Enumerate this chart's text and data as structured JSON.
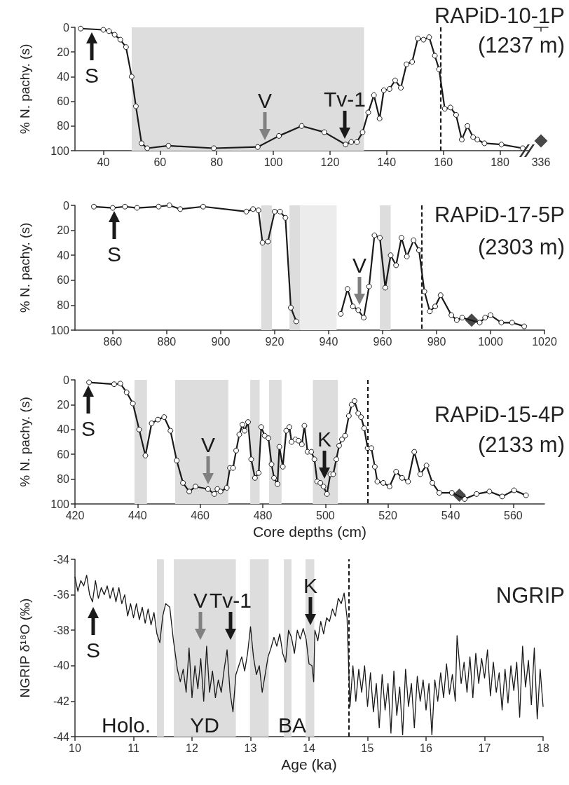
{
  "chart_data": [
    {
      "type": "line",
      "title": "RAPiD-10-1P",
      "subtitle": "(1237 m)",
      "ylabel": "% N. pachy. (s)",
      "marker": "circle",
      "series": [
        {
          "color": "#1a1a1a",
          "x": [
            32,
            40,
            42,
            44,
            46,
            48,
            50,
            51.5,
            53.5,
            55.5,
            63,
            79,
            94.5,
            102,
            110,
            118,
            125.5,
            127.5,
            129.5,
            131.5,
            133.5,
            135.5,
            137.5,
            139,
            141,
            143,
            145,
            147,
            149,
            151,
            153,
            155,
            157,
            158.5,
            160.5,
            162.5,
            164.5,
            166.5,
            168.5,
            170.5,
            172,
            174.5,
            180.5,
            188
          ],
          "values": [
            1,
            2,
            3,
            6,
            10,
            16,
            40,
            64,
            94,
            98,
            96,
            98,
            97,
            88,
            80,
            85,
            95,
            93,
            93,
            85,
            69,
            55,
            74,
            51,
            50,
            43,
            49,
            30,
            28,
            9,
            10,
            8,
            23,
            34,
            66,
            65,
            71,
            91,
            80,
            89,
            91,
            94,
            95,
            98
          ]
        }
      ],
      "xlim": [
        30,
        190
      ],
      "xticks": [
        40,
        60,
        80,
        100,
        120,
        140,
        160,
        180
      ],
      "ylim": [
        100,
        0
      ],
      "yticks": [
        0,
        20,
        40,
        60,
        80,
        100
      ],
      "bands": [
        {
          "axis": "x",
          "from": 50,
          "to": 132,
          "color": "#dddddd"
        }
      ],
      "ref_lines": [
        {
          "axis": "x",
          "value": 159,
          "line_style": "dashed",
          "color": "#1a1a1a"
        }
      ],
      "annotations": [
        "S",
        "V",
        "Tv-1"
      ]
    },
    {
      "type": "scatter",
      "marker": "diamond",
      "tick_labels": "x",
      "categories": [
        "336"
      ],
      "series": [
        {
          "color": "#1a1a1a",
          "values": [
            92
          ]
        }
      ],
      "ylim": [
        100,
        0
      ]
    },
    {
      "type": "line",
      "title": "RAPiD-17-5P",
      "subtitle": "(2303 m)",
      "ylabel": "% N. pachy. (s)",
      "marker": "circle",
      "series": [
        {
          "color": "#1a1a1a",
          "x": [
            853,
            860,
            864.5,
            869,
            877,
            881,
            885,
            893.5,
            909.5,
            912,
            914,
            915.5,
            917.5,
            920,
            922,
            924,
            926,
            928,
            936,
            944.5,
            947,
            949,
            951,
            953,
            955,
            957,
            959,
            961,
            963,
            965,
            967,
            969,
            971.5,
            973.5,
            975.5,
            977.5,
            979.5,
            981.5,
            985.5,
            987.5,
            989.5,
            996,
            998,
            1000,
            1004,
            1008,
            1012.5
          ],
          "values": [
            1,
            2,
            1,
            2,
            1,
            0,
            3,
            1,
            5,
            3,
            4,
            30,
            29,
            5,
            5,
            10,
            82,
            93,
            null,
            87,
            67,
            81,
            84,
            90,
            65,
            24,
            26,
            66,
            40,
            48,
            26,
            41,
            28,
            36,
            69,
            85,
            81,
            72,
            88,
            92,
            90,
            94,
            90,
            88,
            94,
            94,
            97
          ]
        },
        {
          "type": "scatter",
          "marker": "diamond",
          "color": "#1a1a1a",
          "x": [
            993
          ],
          "values": [
            92
          ]
        }
      ],
      "xlim": [
        846,
        1020
      ],
      "xticks": [
        860,
        880,
        900,
        920,
        940,
        960,
        980,
        1000,
        1020
      ],
      "ylim": [
        100,
        0
      ],
      "yticks": [
        0,
        20,
        40,
        60,
        80,
        100
      ],
      "bands": [
        {
          "axis": "x",
          "from": 915,
          "to": 919,
          "color": "#dddddd"
        },
        {
          "axis": "x",
          "from": 925.5,
          "to": 929.5,
          "color": "#dddddd"
        },
        {
          "axis": "x",
          "from": 929.5,
          "to": 943,
          "color": "#ececec"
        },
        {
          "axis": "x",
          "from": 959,
          "to": 963,
          "color": "#dddddd"
        }
      ],
      "ref_lines": [
        {
          "axis": "x",
          "value": 974.5,
          "line_style": "dashed",
          "color": "#1a1a1a"
        }
      ],
      "annotations": [
        "S",
        "V"
      ]
    },
    {
      "type": "line",
      "title": "RAPiD-15-4P",
      "subtitle": "(2133 m)",
      "ylabel": "% N. pachy. (s)",
      "xlabel": "Core depths (cm)",
      "marker": "circle",
      "series": [
        {
          "color": "#1a1a1a",
          "x": [
            424.5,
            432.5,
            434.5,
            436.5,
            438.5,
            440.5,
            442.5,
            444.5,
            446.5,
            448.5,
            450.5,
            452.5,
            454.5,
            456.5,
            458.5,
            462.5,
            464.5,
            465.5,
            466.5,
            468.5,
            469.5,
            470.5,
            471.5,
            472.5,
            473.5,
            474.2,
            475.3,
            476.3,
            477.5,
            478.7,
            479.5,
            480.6,
            481.8,
            482.8,
            483.6,
            484.7,
            485.3,
            486.4,
            487.5,
            488.5,
            489.2,
            490.4,
            491.4,
            492.5,
            493.3,
            494.3,
            495.5,
            496.5,
            497.4,
            498.4,
            499.4,
            500.5,
            501.6,
            502.5,
            503.5,
            504.4,
            505.3,
            506.3,
            507.5,
            508.4,
            509.3,
            510.5,
            511.4,
            512.4,
            513.5,
            514.7,
            515.8,
            516.6,
            518.5,
            520.5,
            522.6,
            524.5,
            526.4,
            528.4,
            530.3,
            532.3,
            534.2,
            536.4,
            540.4,
            544.5,
            548.3,
            552.4,
            556.5,
            560.3,
            564.1
          ],
          "values": [
            2,
            3.5,
            3,
            10,
            19,
            40,
            61,
            35,
            32,
            30,
            41,
            65,
            83,
            90,
            86,
            88,
            92,
            88,
            90,
            87,
            71,
            71,
            57,
            44,
            36,
            41,
            34,
            64,
            79,
            75,
            38,
            45,
            47,
            68,
            79,
            84,
            54,
            70,
            41,
            38,
            50,
            48,
            49,
            52,
            37,
            58,
            58,
            64,
            82,
            83,
            86,
            92,
            76,
            76,
            64,
            53,
            48,
            45,
            29,
            20,
            17,
            27,
            30,
            39,
            55,
            55,
            70,
            82,
            83,
            86,
            74,
            79,
            82,
            58,
            76,
            69,
            83,
            91,
            91,
            96,
            92,
            90,
            94,
            89,
            93
          ]
        },
        {
          "type": "scatter",
          "marker": "diamond",
          "color": "#1a1a1a",
          "x": [
            542.8
          ],
          "values": [
            93
          ]
        }
      ],
      "xlim": [
        420,
        570
      ],
      "xticks": [
        420,
        440,
        460,
        480,
        500,
        520,
        540,
        560
      ],
      "ylim": [
        100,
        0
      ],
      "yticks": [
        0,
        20,
        40,
        60,
        80,
        100
      ],
      "bands": [
        {
          "axis": "x",
          "from": 439,
          "to": 443,
          "color": "#dddddd"
        },
        {
          "axis": "x",
          "from": 452,
          "to": 469,
          "color": "#dddddd"
        },
        {
          "axis": "x",
          "from": 476,
          "to": 479,
          "color": "#dddddd"
        },
        {
          "axis": "x",
          "from": 482,
          "to": 486,
          "color": "#dddddd"
        },
        {
          "axis": "x",
          "from": 496,
          "to": 504,
          "color": "#dddddd"
        }
      ],
      "ref_lines": [
        {
          "axis": "x",
          "value": 513.5,
          "line_style": "dashed",
          "color": "#1a1a1a"
        }
      ],
      "annotations": [
        "S",
        "V",
        "K"
      ]
    },
    {
      "type": "line",
      "title": "NGRIP",
      "ylabel": "NGRIP δ¹⁸O (‰)",
      "xlabel": "Age (ka)",
      "marker": "none",
      "series": [
        {
          "color": "#1a1a1a",
          "x": [
            10.0,
            10.05,
            10.1,
            10.15,
            10.2,
            10.25,
            10.3,
            10.35,
            10.4,
            10.45,
            10.5,
            10.55,
            10.6,
            10.65,
            10.7,
            10.75,
            10.8,
            10.85,
            10.9,
            10.95,
            11.0,
            11.05,
            11.1,
            11.15,
            11.2,
            11.25,
            11.3,
            11.35,
            11.4,
            11.45,
            11.5,
            11.55,
            11.62,
            11.68,
            11.75,
            11.8,
            11.85,
            11.9,
            11.95,
            12.0,
            12.05,
            12.1,
            12.15,
            12.2,
            12.25,
            12.3,
            12.35,
            12.4,
            12.45,
            12.5,
            12.55,
            12.6,
            12.65,
            12.7,
            12.75,
            12.8,
            12.85,
            12.9,
            12.95,
            13.0,
            13.05,
            13.1,
            13.15,
            13.2,
            13.25,
            13.3,
            13.35,
            13.4,
            13.45,
            13.5,
            13.55,
            13.6,
            13.65,
            13.7,
            13.75,
            13.8,
            13.85,
            13.9,
            13.95,
            14.0,
            14.05,
            14.08,
            14.1,
            14.15,
            14.2,
            14.25,
            14.3,
            14.35,
            14.4,
            14.45,
            14.5,
            14.55,
            14.6,
            14.65,
            14.7,
            14.75,
            14.8,
            14.85,
            14.9,
            14.95,
            15.0,
            15.05,
            15.1,
            15.15,
            15.2,
            15.25,
            15.3,
            15.35,
            15.4,
            15.45,
            15.5,
            15.55,
            15.6,
            15.65,
            15.7,
            15.75,
            15.8,
            15.85,
            15.9,
            15.95,
            16.0,
            16.05,
            16.1,
            16.15,
            16.2,
            16.25,
            16.3,
            16.35,
            16.4,
            16.45,
            16.5,
            16.53,
            16.6,
            16.65,
            16.7,
            16.75,
            16.8,
            16.85,
            16.9,
            16.95,
            17.0,
            17.05,
            17.1,
            17.15,
            17.2,
            17.25,
            17.3,
            17.35,
            17.4,
            17.45,
            17.5,
            17.55,
            17.6,
            17.65,
            17.7,
            17.75,
            17.8,
            17.85,
            17.9,
            17.95,
            18.0
          ],
          "values": [
            -35.0,
            -35.8,
            -35.2,
            -35.5,
            -34.9,
            -36.0,
            -36.4,
            -35.2,
            -36.2,
            -35.6,
            -36.0,
            -35.5,
            -36.2,
            -35.6,
            -36.4,
            -35.6,
            -36.5,
            -36.0,
            -37.2,
            -36.5,
            -37.3,
            -36.5,
            -37.4,
            -36.7,
            -37.6,
            -36.8,
            -37.7,
            -37.0,
            -38.2,
            -38.7,
            -37.2,
            -36.5,
            -36.7,
            -38.5,
            -40.2,
            -40.9,
            -40.2,
            -41.5,
            -39.0,
            -41.8,
            -40.0,
            -41.3,
            -39.6,
            -42.0,
            -38.9,
            -41.5,
            -40.3,
            -41.8,
            -40.8,
            -41.5,
            -40.2,
            -39.1,
            -41.5,
            -42.6,
            -40.5,
            -40.0,
            -39.5,
            -40.3,
            -39.3,
            -37.8,
            -39.5,
            -40.5,
            -40.0,
            -41.5,
            -40.5,
            -39.5,
            -39.0,
            -38.4,
            -38.9,
            -38.2,
            -39.3,
            -39.8,
            -38.0,
            -38.4,
            -39.3,
            -38.0,
            -38.5,
            -37.9,
            -38.5,
            -39.9,
            -40.0,
            -40.9,
            -38.0,
            -38.6,
            -37.5,
            -38.2,
            -37.3,
            -37.5,
            -36.8,
            -37.2,
            -36.2,
            -36.5,
            -35.9,
            -37.3,
            -42.3,
            -40.0,
            -42.0,
            -40.2,
            -41.5,
            -40.0,
            -42.3,
            -40.4,
            -42.6,
            -41.0,
            -43.5,
            -40.5,
            -42.5,
            -41.0,
            -43.8,
            -40.3,
            -42.8,
            -41.2,
            -43.9,
            -40.2,
            -42.3,
            -41.0,
            -43.5,
            -40.6,
            -42.0,
            -40.8,
            -42.5,
            -41.0,
            -43.9,
            -40.8,
            -42.0,
            -40.4,
            -41.8,
            -39.9,
            -41.6,
            -40.5,
            -42.0,
            -38.3,
            -41.0,
            -39.8,
            -41.5,
            -39.5,
            -41.8,
            -39.3,
            -41.0,
            -39.6,
            -40.7,
            -39.1,
            -41.7,
            -39.8,
            -41.5,
            -40.4,
            -42.5,
            -40.2,
            -42.1,
            -40.0,
            -41.4,
            -39.8,
            -42.9,
            -38.9,
            -41.2,
            -39.7,
            -42.2,
            -39.0,
            -43.0,
            -40.2,
            -42.3
          ]
        }
      ],
      "xlim": [
        10,
        18
      ],
      "xticks": [
        10,
        11,
        12,
        13,
        14,
        15,
        16,
        17,
        18
      ],
      "ylim": [
        -44,
        -34
      ],
      "yticks": [
        -44,
        -42,
        -40,
        -38,
        -36,
        -34
      ],
      "bands": [
        {
          "axis": "x",
          "from": 11.4,
          "to": 11.52,
          "color": "#dddddd"
        },
        {
          "axis": "x",
          "from": 11.69,
          "to": 12.75,
          "color": "#dddddd"
        },
        {
          "axis": "x",
          "from": 12.99,
          "to": 13.31,
          "color": "#dddddd"
        },
        {
          "axis": "x",
          "from": 13.57,
          "to": 13.7,
          "color": "#dddddd"
        },
        {
          "axis": "x",
          "from": 13.94,
          "to": 14.09,
          "color": "#dddddd"
        }
      ],
      "ref_lines": [
        {
          "axis": "x",
          "value": 14.68,
          "line_style": "dashed",
          "color": "#1a1a1a"
        }
      ],
      "annotations": [
        "S",
        "V",
        "Tv-1",
        "K",
        "Holo.",
        "YD",
        "BA"
      ]
    }
  ]
}
